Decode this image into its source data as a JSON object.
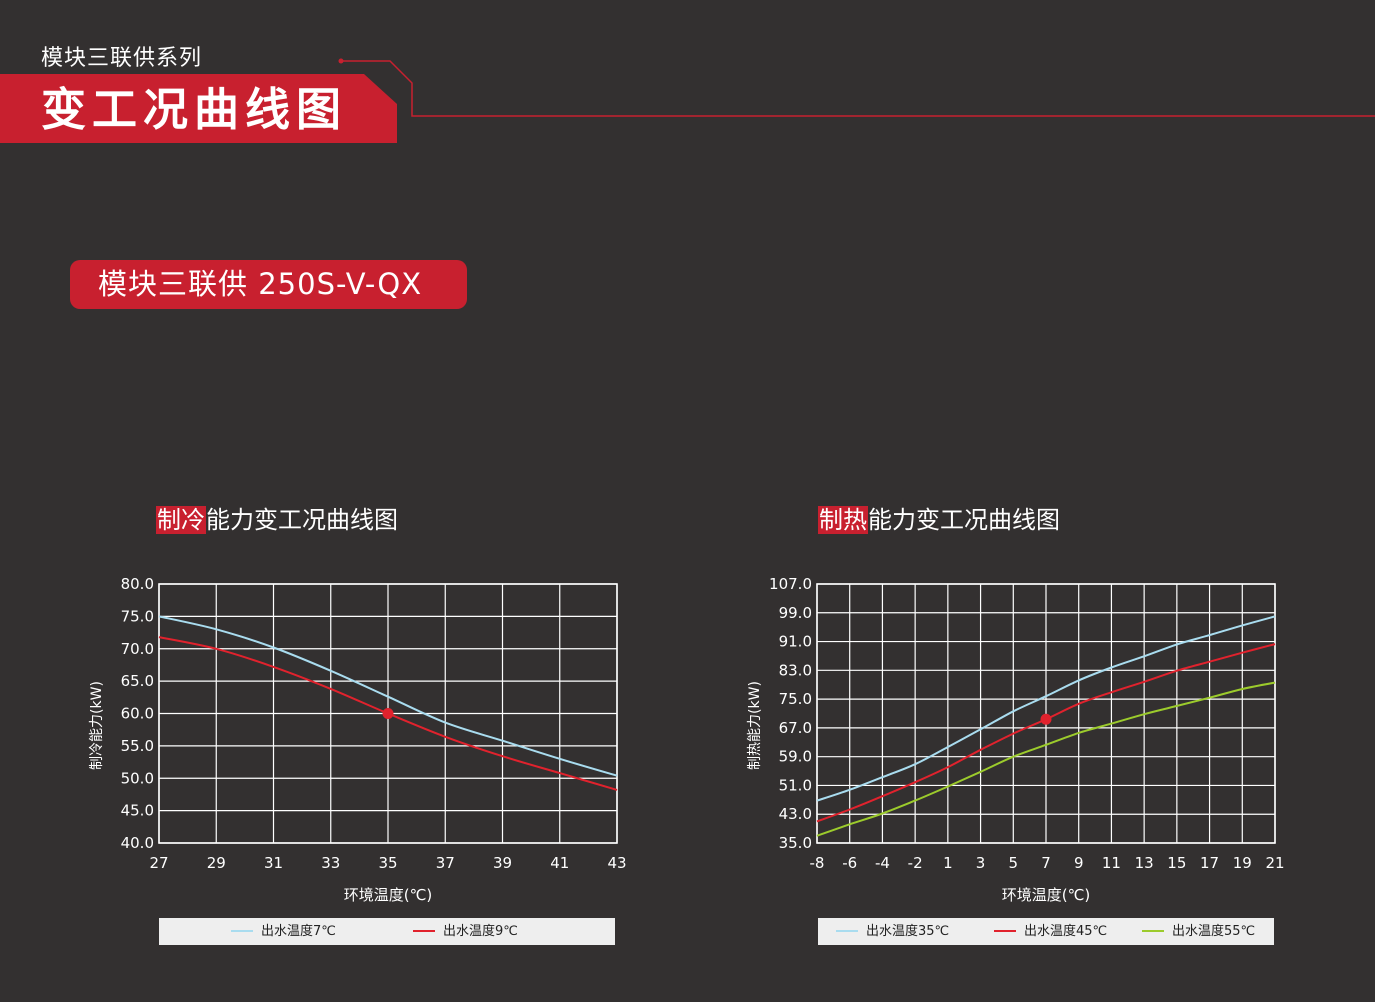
{
  "header": {
    "series": "模块三联供系列",
    "title": "变工况曲线图"
  },
  "model": {
    "label": "模块三联供 250S-V-QX"
  },
  "colors": {
    "background": "#333030",
    "accent_red": "#c8202f",
    "line_blue": "#a9dcef",
    "line_red": "#e1222d",
    "line_green": "#9ccb2c",
    "legend_bg": "#eeeeee"
  },
  "cooling": {
    "heading_highlight": "制冷",
    "heading_rest": "能力变工况曲线图"
  },
  "heating": {
    "heading_highlight": "制热",
    "heading_rest": "能力变工况曲线图"
  },
  "chart_data": [
    {
      "type": "line",
      "title": "制冷能力变工况曲线图",
      "xlabel": "环境温度(℃)",
      "ylabel": "制冷能力(kW)",
      "x_ticks": [
        "27",
        "29",
        "31",
        "33",
        "35",
        "37",
        "39",
        "41",
        "43"
      ],
      "y_ticks": [
        "40.0",
        "45.0",
        "50.0",
        "55.0",
        "60.0",
        "65.0",
        "70.0",
        "75.0",
        "80.0"
      ],
      "xlim": [
        27,
        43
      ],
      "ylim": [
        40,
        80
      ],
      "grid": true,
      "legend_position": "bottom",
      "marker": {
        "x": 35,
        "y": 60,
        "series": "出水温度9℃"
      },
      "series": [
        {
          "name": "出水温度7℃",
          "color": "#a9dcef",
          "x": [
            27,
            29,
            31,
            33,
            35,
            37,
            39,
            41,
            43
          ],
          "values": [
            75.0,
            73.0,
            70.2,
            66.6,
            62.6,
            58.6,
            55.8,
            53.0,
            50.4
          ]
        },
        {
          "name": "出水温度9℃",
          "color": "#e1222d",
          "x": [
            27,
            29,
            31,
            33,
            35,
            37,
            39,
            41,
            43
          ],
          "values": [
            71.8,
            70.0,
            67.2,
            63.8,
            60.0,
            56.4,
            53.4,
            50.8,
            48.2
          ]
        }
      ]
    },
    {
      "type": "line",
      "title": "制热能力变工况曲线图",
      "xlabel": "环境温度(℃)",
      "ylabel": "制热能力(kW)",
      "x_ticks": [
        "-8",
        "-6",
        "-4",
        "-2",
        "1",
        "3",
        "5",
        "7",
        "9",
        "11",
        "13",
        "15",
        "17",
        "19",
        "21"
      ],
      "y_ticks": [
        "35.0",
        "43.0",
        "51.0",
        "59.0",
        "67.0",
        "75.0",
        "83.0",
        "91.0",
        "99.0",
        "107.0"
      ],
      "ylim": [
        35,
        107
      ],
      "grid": true,
      "legend_position": "bottom",
      "marker": {
        "tick_index": 7,
        "y": 69.4,
        "series": "出水温度45℃"
      },
      "series": [
        {
          "name": "出水温度35℃",
          "color": "#a9dcef",
          "values": [
            46.8,
            49.8,
            53.3,
            56.9,
            61.7,
            66.6,
            71.6,
            75.8,
            80.2,
            83.8,
            86.9,
            90.2,
            92.8,
            95.5,
            98.0
          ]
        },
        {
          "name": "出水温度45℃",
          "color": "#e1222d",
          "values": [
            41.0,
            44.3,
            48.0,
            51.9,
            56.1,
            60.9,
            65.4,
            69.4,
            73.7,
            76.9,
            79.8,
            82.9,
            85.4,
            87.9,
            90.3
          ]
        },
        {
          "name": "出水温度55℃",
          "color": "#9ccb2c",
          "values": [
            37.0,
            40.2,
            43.2,
            46.8,
            50.7,
            54.8,
            59.0,
            62.3,
            65.6,
            68.2,
            70.8,
            73.1,
            75.4,
            77.8,
            79.6
          ]
        }
      ]
    }
  ]
}
